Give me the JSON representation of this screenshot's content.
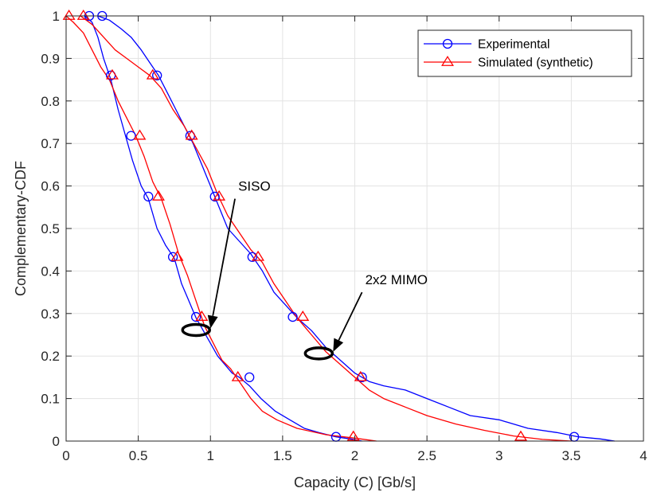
{
  "chart_data": {
    "type": "line",
    "title": "",
    "xlabel": "Capacity (C) [Gb/s]",
    "ylabel": "Complementary-CDF",
    "xlim": [
      0,
      4
    ],
    "ylim": [
      0,
      1
    ],
    "xticks": [
      0,
      0.5,
      1,
      1.5,
      2,
      2.5,
      3,
      3.5,
      4
    ],
    "xtick_labels": [
      "0",
      "0.5",
      "1",
      "1.5",
      "2",
      "2.5",
      "3",
      "3.5",
      "4"
    ],
    "yticks": [
      0,
      0.1,
      0.2,
      0.3,
      0.4,
      0.5,
      0.6,
      0.7,
      0.8,
      0.9,
      1
    ],
    "ytick_labels": [
      "0",
      "0.1",
      "0.2",
      "0.3",
      "0.4",
      "0.5",
      "0.6",
      "0.7",
      "0.8",
      "0.9",
      "1"
    ],
    "grid": true,
    "legend_position": "top-right",
    "legend": [
      {
        "label": "Experimental",
        "color": "#0000ff",
        "marker": "circle"
      },
      {
        "label": "Simulated (synthetic)",
        "color": "#ff0000",
        "marker": "triangle"
      }
    ],
    "series": [
      {
        "name": "Experimental",
        "group": "SISO",
        "color": "#0000ff",
        "marker": "circle",
        "x": [
          0.13,
          0.18,
          0.22,
          0.26,
          0.31,
          0.36,
          0.41,
          0.46,
          0.52,
          0.57,
          0.63,
          0.69,
          0.75,
          0.8,
          0.85,
          0.9,
          0.95,
          1.0,
          1.05,
          1.1,
          1.15,
          1.2,
          1.27,
          1.35,
          1.45,
          1.55,
          1.65,
          1.75,
          1.87,
          1.97,
          2.05
        ],
        "y": [
          1.0,
          0.985,
          0.95,
          0.9,
          0.85,
          0.78,
          0.72,
          0.66,
          0.6,
          0.57,
          0.5,
          0.46,
          0.43,
          0.37,
          0.33,
          0.29,
          0.26,
          0.23,
          0.2,
          0.18,
          0.16,
          0.15,
          0.13,
          0.1,
          0.07,
          0.05,
          0.03,
          0.02,
          0.01,
          0.005,
          0.0
        ],
        "marker_points": [
          [
            0.16,
            1.0
          ],
          [
            0.31,
            0.86
          ],
          [
            0.45,
            0.718
          ],
          [
            0.57,
            0.575
          ],
          [
            0.74,
            0.433
          ],
          [
            0.9,
            0.292
          ],
          [
            1.27,
            0.15
          ],
          [
            1.87,
            0.01
          ]
        ]
      },
      {
        "name": "Simulated (synthetic)",
        "group": "SISO",
        "color": "#ff0000",
        "marker": "triangle",
        "x": [
          0.0,
          0.05,
          0.12,
          0.18,
          0.24,
          0.3,
          0.36,
          0.42,
          0.48,
          0.54,
          0.6,
          0.66,
          0.72,
          0.78,
          0.84,
          0.9,
          0.96,
          1.02,
          1.08,
          1.14,
          1.2,
          1.28,
          1.36,
          1.46,
          1.6,
          1.8,
          2.0,
          2.15
        ],
        "y": [
          1.0,
          0.985,
          0.96,
          0.92,
          0.88,
          0.85,
          0.8,
          0.76,
          0.72,
          0.67,
          0.61,
          0.57,
          0.51,
          0.44,
          0.39,
          0.33,
          0.27,
          0.23,
          0.19,
          0.17,
          0.14,
          0.1,
          0.07,
          0.05,
          0.03,
          0.015,
          0.007,
          0.0
        ],
        "marker_points": [
          [
            0.02,
            1.0
          ],
          [
            0.32,
            0.86
          ],
          [
            0.51,
            0.718
          ],
          [
            0.64,
            0.575
          ],
          [
            0.77,
            0.433
          ],
          [
            0.94,
            0.292
          ],
          [
            1.19,
            0.15
          ],
          [
            1.99,
            0.01
          ]
        ]
      },
      {
        "name": "Experimental",
        "group": "2x2 MIMO",
        "color": "#0000ff",
        "marker": "circle",
        "x": [
          0.22,
          0.3,
          0.38,
          0.45,
          0.52,
          0.58,
          0.64,
          0.7,
          0.76,
          0.82,
          0.88,
          0.94,
          1.0,
          1.06,
          1.12,
          1.2,
          1.28,
          1.36,
          1.44,
          1.52,
          1.6,
          1.7,
          1.8,
          1.9,
          2.0,
          2.1,
          2.2,
          2.35,
          2.5,
          2.65,
          2.8,
          3.0,
          3.2,
          3.4,
          3.55,
          3.7,
          3.8
        ],
        "y": [
          1.0,
          0.99,
          0.97,
          0.95,
          0.92,
          0.89,
          0.86,
          0.82,
          0.78,
          0.74,
          0.7,
          0.65,
          0.6,
          0.55,
          0.5,
          0.47,
          0.44,
          0.4,
          0.35,
          0.32,
          0.29,
          0.26,
          0.22,
          0.19,
          0.16,
          0.14,
          0.13,
          0.12,
          0.1,
          0.08,
          0.06,
          0.05,
          0.03,
          0.02,
          0.01,
          0.005,
          0.0
        ],
        "marker_points": [
          [
            0.25,
            1.0
          ],
          [
            0.63,
            0.86
          ],
          [
            0.86,
            0.718
          ],
          [
            1.03,
            0.575
          ],
          [
            1.29,
            0.433
          ],
          [
            1.57,
            0.292
          ],
          [
            2.05,
            0.15
          ],
          [
            3.52,
            0.01
          ]
        ]
      },
      {
        "name": "Simulated (synthetic)",
        "group": "2x2 MIMO",
        "color": "#ff0000",
        "marker": "triangle",
        "x": [
          0.1,
          0.18,
          0.26,
          0.34,
          0.42,
          0.5,
          0.58,
          0.66,
          0.74,
          0.82,
          0.9,
          0.98,
          1.05,
          1.12,
          1.2,
          1.28,
          1.36,
          1.44,
          1.52,
          1.6,
          1.7,
          1.8,
          1.9,
          2.0,
          2.1,
          2.2,
          2.35,
          2.5,
          2.7,
          2.9,
          3.1,
          3.3,
          3.5
        ],
        "y": [
          1.0,
          0.98,
          0.95,
          0.92,
          0.9,
          0.88,
          0.86,
          0.83,
          0.78,
          0.74,
          0.69,
          0.64,
          0.58,
          0.53,
          0.49,
          0.45,
          0.42,
          0.37,
          0.33,
          0.29,
          0.25,
          0.21,
          0.18,
          0.15,
          0.12,
          0.1,
          0.08,
          0.06,
          0.04,
          0.025,
          0.012,
          0.004,
          0.0
        ],
        "marker_points": [
          [
            0.12,
            1.0
          ],
          [
            0.6,
            0.86
          ],
          [
            0.87,
            0.718
          ],
          [
            1.06,
            0.575
          ],
          [
            1.33,
            0.433
          ],
          [
            1.64,
            0.292
          ],
          [
            2.04,
            0.15
          ],
          [
            3.15,
            0.01
          ]
        ]
      }
    ],
    "annotations": [
      {
        "text": "SISO",
        "label_at": [
          1.17,
          0.57
        ],
        "arrow_to": [
          1.0,
          0.265
        ]
      },
      {
        "text": "2x2 MIMO",
        "label_at": [
          2.05,
          0.35
        ],
        "arrow_to": [
          1.85,
          0.21
        ]
      }
    ]
  }
}
